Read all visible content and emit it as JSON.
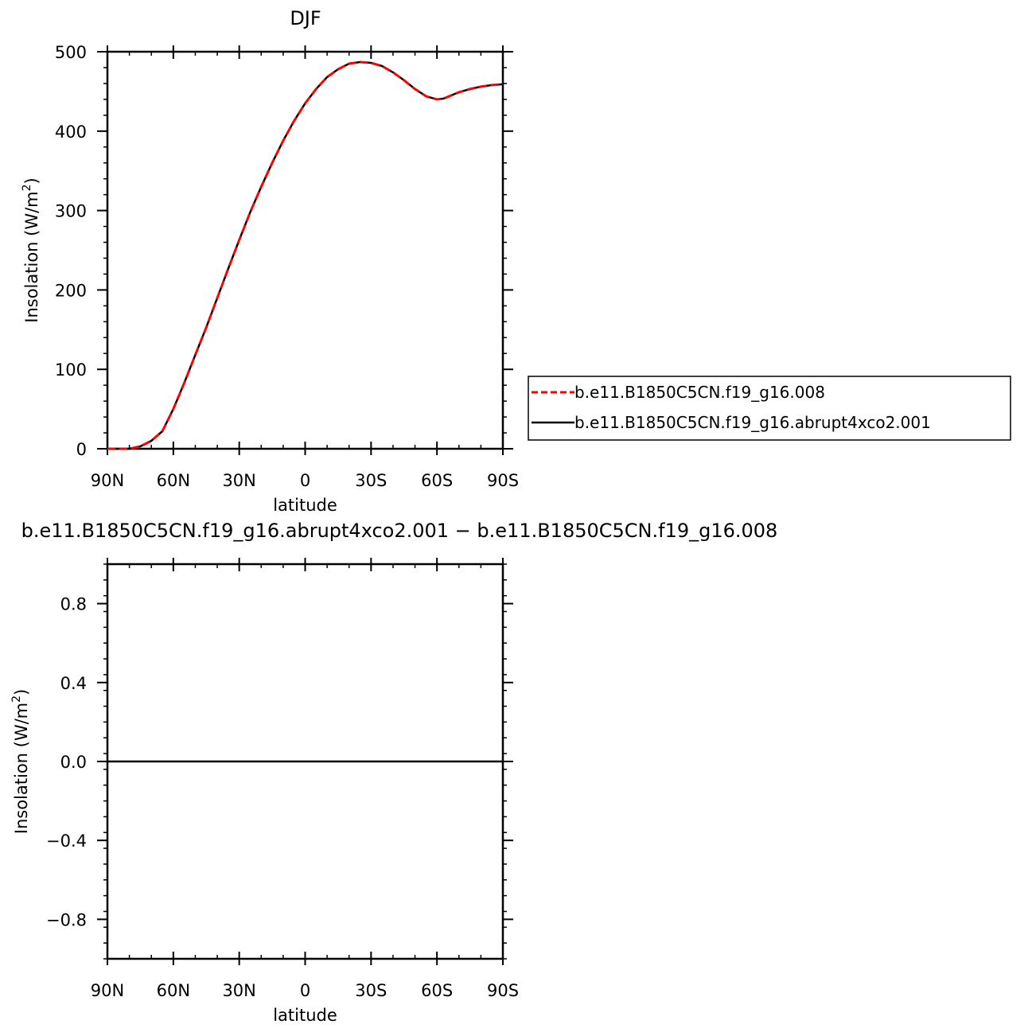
{
  "chart_data": [
    {
      "type": "line",
      "title": "DJF",
      "xlabel": "latitude",
      "ylabel": "Insolation (W/m²)",
      "ylabel_main": "Insolation (W/m",
      "ylabel_sup": "2",
      "ylabel_close": ")",
      "xlim": [
        -90,
        90
      ],
      "x_reversed": true,
      "ylim": [
        0,
        500
      ],
      "xticks": [
        {
          "value": 90,
          "label": "90N"
        },
        {
          "value": 60,
          "label": "60N"
        },
        {
          "value": 30,
          "label": "30N"
        },
        {
          "value": 0,
          "label": "0"
        },
        {
          "value": -30,
          "label": "30S"
        },
        {
          "value": -60,
          "label": "60S"
        },
        {
          "value": -90,
          "label": "90S"
        }
      ],
      "yticks": [
        {
          "value": 0,
          "label": "0"
        },
        {
          "value": 100,
          "label": "100"
        },
        {
          "value": 200,
          "label": "200"
        },
        {
          "value": 300,
          "label": "300"
        },
        {
          "value": 400,
          "label": "400"
        },
        {
          "value": 500,
          "label": "500"
        }
      ],
      "x": [
        90,
        80,
        75,
        70,
        65,
        60,
        55,
        50,
        45,
        40,
        35,
        30,
        25,
        20,
        15,
        10,
        5,
        0,
        -5,
        -10,
        -15,
        -20,
        -25,
        -30,
        -35,
        -40,
        -45,
        -50,
        -55,
        -60,
        -63,
        -66.5,
        -70,
        -75,
        -80,
        -85,
        -90
      ],
      "series": [
        {
          "name": "b.e11.B1850C5CN.f19_g16.008",
          "color": "#ff0000",
          "dash": "dashed",
          "values": [
            0,
            0,
            3,
            10,
            22,
            50,
            83,
            118,
            153,
            190,
            227,
            263,
            298,
            330,
            360,
            388,
            413,
            435,
            453,
            468,
            478,
            485,
            487,
            486,
            482,
            474,
            464,
            453,
            444,
            440,
            441,
            445,
            449,
            453,
            456,
            458,
            459
          ]
        },
        {
          "name": "b.e11.B1850C5CN.f19_g16.abrupt4xco2.001",
          "color": "#000000",
          "dash": "solid",
          "values": [
            0,
            0,
            3,
            10,
            22,
            50,
            83,
            118,
            153,
            190,
            227,
            263,
            298,
            330,
            360,
            388,
            413,
            435,
            453,
            468,
            478,
            485,
            487,
            486,
            482,
            474,
            464,
            453,
            444,
            440,
            441,
            445,
            449,
            453,
            456,
            458,
            459
          ]
        }
      ]
    },
    {
      "type": "line",
      "title": "b.e11.B1850C5CN.f19_g16.abrupt4xco2.001 − b.e11.B1850C5CN.f19_g16.008",
      "xlabel": "latitude",
      "ylabel_main": "Insolation (W/m",
      "ylabel_sup": "2",
      "ylabel_close": ")",
      "xlim": [
        -90,
        90
      ],
      "x_reversed": true,
      "ylim": [
        -1,
        1
      ],
      "xticks": [
        {
          "value": 90,
          "label": "90N"
        },
        {
          "value": 60,
          "label": "60N"
        },
        {
          "value": 30,
          "label": "30N"
        },
        {
          "value": 0,
          "label": "0"
        },
        {
          "value": -30,
          "label": "30S"
        },
        {
          "value": -60,
          "label": "60S"
        },
        {
          "value": -90,
          "label": "90S"
        }
      ],
      "yticks": [
        {
          "value": -0.8,
          "label": "−0.8"
        },
        {
          "value": -0.4,
          "label": "−0.4"
        },
        {
          "value": 0,
          "label": "0.0"
        },
        {
          "value": 0.4,
          "label": "0.4"
        },
        {
          "value": 0.8,
          "label": "0.8"
        }
      ],
      "x": [
        90,
        -90
      ],
      "series": [
        {
          "color": "#000000",
          "values": [
            0,
            0
          ]
        }
      ]
    }
  ]
}
